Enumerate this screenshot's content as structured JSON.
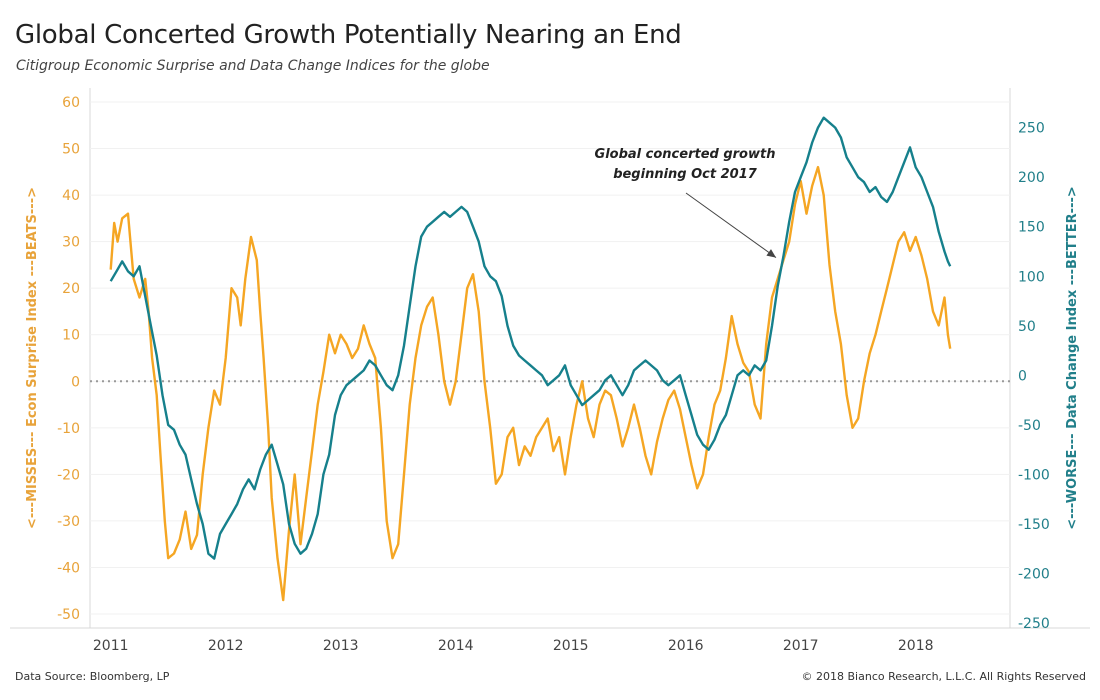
{
  "header": {
    "title": "Global Concerted Growth Potentially Nearing an End",
    "subtitle": "Citigroup Economic Surprise and Data Change Indices for the globe"
  },
  "footer": {
    "source": "Data Source: Bloomberg, LP",
    "copyright": "© 2018 Bianco Research, L.L.C. All Rights Reserved"
  },
  "chart_data": {
    "type": "line",
    "x_ticks": [
      "2011",
      "2012",
      "2013",
      "2014",
      "2015",
      "2016",
      "2017",
      "2018"
    ],
    "y_left": {
      "label": "<---MISSES--- Econ Surprise Index ---BEATS--->",
      "ticks": [
        60,
        50,
        40,
        30,
        20,
        10,
        0,
        -10,
        -20,
        -30,
        -40,
        -50
      ],
      "range": [
        -53,
        63
      ],
      "color": "#f5a623"
    },
    "y_right": {
      "label": "<---WORSE--- Data Change Index ---BETTER--->",
      "ticks": [
        250,
        200,
        150,
        100,
        50,
        0,
        -50,
        -100,
        -150,
        -200,
        -250
      ],
      "range": [
        -255,
        290
      ],
      "color": "#16808c"
    },
    "zero_line": "dotted",
    "annotation": {
      "text_line1": "Global concerted growth",
      "text_line2": "beginning Oct 2017",
      "target_date": 2016.82,
      "target_value": 27
    },
    "series": [
      {
        "name": "Econ Surprise Index",
        "axis": "left",
        "color": "#f5a623",
        "points": [
          [
            2011.0,
            24
          ],
          [
            2011.03,
            34
          ],
          [
            2011.06,
            30
          ],
          [
            2011.1,
            35
          ],
          [
            2011.15,
            36
          ],
          [
            2011.2,
            22
          ],
          [
            2011.25,
            18
          ],
          [
            2011.3,
            22
          ],
          [
            2011.33,
            15
          ],
          [
            2011.36,
            5
          ],
          [
            2011.4,
            -3
          ],
          [
            2011.43,
            -15
          ],
          [
            2011.47,
            -30
          ],
          [
            2011.5,
            -38
          ],
          [
            2011.55,
            -37
          ],
          [
            2011.6,
            -34
          ],
          [
            2011.65,
            -28
          ],
          [
            2011.7,
            -36
          ],
          [
            2011.75,
            -33
          ],
          [
            2011.8,
            -20
          ],
          [
            2011.85,
            -10
          ],
          [
            2011.9,
            -2
          ],
          [
            2011.95,
            -5
          ],
          [
            2012.0,
            5
          ],
          [
            2012.05,
            20
          ],
          [
            2012.1,
            18
          ],
          [
            2012.13,
            12
          ],
          [
            2012.17,
            22
          ],
          [
            2012.22,
            31
          ],
          [
            2012.27,
            26
          ],
          [
            2012.3,
            15
          ],
          [
            2012.33,
            5
          ],
          [
            2012.37,
            -10
          ],
          [
            2012.4,
            -25
          ],
          [
            2012.45,
            -38
          ],
          [
            2012.5,
            -47
          ],
          [
            2012.55,
            -32
          ],
          [
            2012.6,
            -20
          ],
          [
            2012.65,
            -35
          ],
          [
            2012.7,
            -25
          ],
          [
            2012.75,
            -15
          ],
          [
            2012.8,
            -5
          ],
          [
            2012.85,
            2
          ],
          [
            2012.9,
            10
          ],
          [
            2012.95,
            6
          ],
          [
            2013.0,
            10
          ],
          [
            2013.05,
            8
          ],
          [
            2013.1,
            5
          ],
          [
            2013.15,
            7
          ],
          [
            2013.2,
            12
          ],
          [
            2013.25,
            8
          ],
          [
            2013.3,
            5
          ],
          [
            2013.35,
            -10
          ],
          [
            2013.4,
            -30
          ],
          [
            2013.45,
            -38
          ],
          [
            2013.5,
            -35
          ],
          [
            2013.55,
            -20
          ],
          [
            2013.6,
            -5
          ],
          [
            2013.65,
            5
          ],
          [
            2013.7,
            12
          ],
          [
            2013.75,
            16
          ],
          [
            2013.8,
            18
          ],
          [
            2013.85,
            10
          ],
          [
            2013.9,
            0
          ],
          [
            2013.95,
            -5
          ],
          [
            2014.0,
            0
          ],
          [
            2014.05,
            10
          ],
          [
            2014.1,
            20
          ],
          [
            2014.15,
            23
          ],
          [
            2014.2,
            15
          ],
          [
            2014.25,
            0
          ],
          [
            2014.3,
            -10
          ],
          [
            2014.35,
            -22
          ],
          [
            2014.4,
            -20
          ],
          [
            2014.45,
            -12
          ],
          [
            2014.5,
            -10
          ],
          [
            2014.55,
            -18
          ],
          [
            2014.6,
            -14
          ],
          [
            2014.65,
            -16
          ],
          [
            2014.7,
            -12
          ],
          [
            2014.75,
            -10
          ],
          [
            2014.8,
            -8
          ],
          [
            2014.85,
            -15
          ],
          [
            2014.9,
            -12
          ],
          [
            2014.95,
            -20
          ],
          [
            2015.0,
            -12
          ],
          [
            2015.05,
            -5
          ],
          [
            2015.1,
            0
          ],
          [
            2015.15,
            -8
          ],
          [
            2015.2,
            -12
          ],
          [
            2015.25,
            -5
          ],
          [
            2015.3,
            -2
          ],
          [
            2015.35,
            -3
          ],
          [
            2015.4,
            -8
          ],
          [
            2015.45,
            -14
          ],
          [
            2015.5,
            -10
          ],
          [
            2015.55,
            -5
          ],
          [
            2015.6,
            -10
          ],
          [
            2015.65,
            -16
          ],
          [
            2015.7,
            -20
          ],
          [
            2015.75,
            -13
          ],
          [
            2015.8,
            -8
          ],
          [
            2015.85,
            -4
          ],
          [
            2015.9,
            -2
          ],
          [
            2015.95,
            -6
          ],
          [
            2016.0,
            -12
          ],
          [
            2016.05,
            -18
          ],
          [
            2016.1,
            -23
          ],
          [
            2016.15,
            -20
          ],
          [
            2016.2,
            -12
          ],
          [
            2016.25,
            -5
          ],
          [
            2016.3,
            -2
          ],
          [
            2016.35,
            5
          ],
          [
            2016.4,
            14
          ],
          [
            2016.45,
            8
          ],
          [
            2016.5,
            4
          ],
          [
            2016.55,
            2
          ],
          [
            2016.6,
            -5
          ],
          [
            2016.65,
            -8
          ],
          [
            2016.7,
            8
          ],
          [
            2016.75,
            18
          ],
          [
            2016.8,
            22
          ],
          [
            2016.85,
            26
          ],
          [
            2016.9,
            30
          ],
          [
            2016.95,
            38
          ],
          [
            2017.0,
            43
          ],
          [
            2017.05,
            36
          ],
          [
            2017.1,
            42
          ],
          [
            2017.15,
            46
          ],
          [
            2017.2,
            40
          ],
          [
            2017.25,
            25
          ],
          [
            2017.3,
            15
          ],
          [
            2017.35,
            8
          ],
          [
            2017.4,
            -3
          ],
          [
            2017.45,
            -10
          ],
          [
            2017.5,
            -8
          ],
          [
            2017.55,
            0
          ],
          [
            2017.6,
            6
          ],
          [
            2017.65,
            10
          ],
          [
            2017.7,
            15
          ],
          [
            2017.75,
            20
          ],
          [
            2017.8,
            25
          ],
          [
            2017.85,
            30
          ],
          [
            2017.9,
            32
          ],
          [
            2017.95,
            28
          ],
          [
            2018.0,
            31
          ],
          [
            2018.05,
            27
          ],
          [
            2018.1,
            22
          ],
          [
            2018.15,
            15
          ],
          [
            2018.2,
            12
          ],
          [
            2018.25,
            18
          ],
          [
            2018.28,
            10
          ],
          [
            2018.3,
            7
          ]
        ]
      },
      {
        "name": "Data Change Index",
        "axis": "right",
        "color": "#16808c",
        "points": [
          [
            2011.0,
            95
          ],
          [
            2011.05,
            105
          ],
          [
            2011.1,
            115
          ],
          [
            2011.15,
            105
          ],
          [
            2011.2,
            100
          ],
          [
            2011.25,
            110
          ],
          [
            2011.3,
            80
          ],
          [
            2011.35,
            50
          ],
          [
            2011.4,
            20
          ],
          [
            2011.45,
            -20
          ],
          [
            2011.5,
            -50
          ],
          [
            2011.55,
            -55
          ],
          [
            2011.6,
            -70
          ],
          [
            2011.65,
            -80
          ],
          [
            2011.7,
            -105
          ],
          [
            2011.75,
            -130
          ],
          [
            2011.8,
            -150
          ],
          [
            2011.85,
            -180
          ],
          [
            2011.9,
            -185
          ],
          [
            2011.95,
            -160
          ],
          [
            2012.0,
            -150
          ],
          [
            2012.05,
            -140
          ],
          [
            2012.1,
            -130
          ],
          [
            2012.15,
            -115
          ],
          [
            2012.2,
            -105
          ],
          [
            2012.25,
            -115
          ],
          [
            2012.3,
            -95
          ],
          [
            2012.35,
            -80
          ],
          [
            2012.4,
            -70
          ],
          [
            2012.45,
            -90
          ],
          [
            2012.5,
            -110
          ],
          [
            2012.55,
            -150
          ],
          [
            2012.6,
            -170
          ],
          [
            2012.65,
            -180
          ],
          [
            2012.7,
            -175
          ],
          [
            2012.75,
            -160
          ],
          [
            2012.8,
            -140
          ],
          [
            2012.85,
            -100
          ],
          [
            2012.9,
            -80
          ],
          [
            2012.95,
            -40
          ],
          [
            2013.0,
            -20
          ],
          [
            2013.05,
            -10
          ],
          [
            2013.1,
            -5
          ],
          [
            2013.15,
            0
          ],
          [
            2013.2,
            5
          ],
          [
            2013.25,
            15
          ],
          [
            2013.3,
            10
          ],
          [
            2013.35,
            0
          ],
          [
            2013.4,
            -10
          ],
          [
            2013.45,
            -15
          ],
          [
            2013.5,
            0
          ],
          [
            2013.55,
            30
          ],
          [
            2013.6,
            70
          ],
          [
            2013.65,
            110
          ],
          [
            2013.7,
            140
          ],
          [
            2013.75,
            150
          ],
          [
            2013.8,
            155
          ],
          [
            2013.85,
            160
          ],
          [
            2013.9,
            165
          ],
          [
            2013.95,
            160
          ],
          [
            2014.0,
            165
          ],
          [
            2014.05,
            170
          ],
          [
            2014.1,
            165
          ],
          [
            2014.15,
            150
          ],
          [
            2014.2,
            135
          ],
          [
            2014.25,
            110
          ],
          [
            2014.3,
            100
          ],
          [
            2014.35,
            95
          ],
          [
            2014.4,
            80
          ],
          [
            2014.45,
            50
          ],
          [
            2014.5,
            30
          ],
          [
            2014.55,
            20
          ],
          [
            2014.6,
            15
          ],
          [
            2014.65,
            10
          ],
          [
            2014.7,
            5
          ],
          [
            2014.75,
            0
          ],
          [
            2014.8,
            -10
          ],
          [
            2014.85,
            -5
          ],
          [
            2014.9,
            0
          ],
          [
            2014.95,
            10
          ],
          [
            2015.0,
            -10
          ],
          [
            2015.05,
            -20
          ],
          [
            2015.1,
            -30
          ],
          [
            2015.15,
            -25
          ],
          [
            2015.2,
            -20
          ],
          [
            2015.25,
            -15
          ],
          [
            2015.3,
            -5
          ],
          [
            2015.35,
            0
          ],
          [
            2015.4,
            -10
          ],
          [
            2015.45,
            -20
          ],
          [
            2015.5,
            -10
          ],
          [
            2015.55,
            5
          ],
          [
            2015.6,
            10
          ],
          [
            2015.65,
            15
          ],
          [
            2015.7,
            10
          ],
          [
            2015.75,
            5
          ],
          [
            2015.8,
            -5
          ],
          [
            2015.85,
            -10
          ],
          [
            2015.9,
            -5
          ],
          [
            2015.95,
            0
          ],
          [
            2016.0,
            -20
          ],
          [
            2016.05,
            -40
          ],
          [
            2016.1,
            -60
          ],
          [
            2016.15,
            -70
          ],
          [
            2016.2,
            -75
          ],
          [
            2016.25,
            -65
          ],
          [
            2016.3,
            -50
          ],
          [
            2016.35,
            -40
          ],
          [
            2016.4,
            -20
          ],
          [
            2016.45,
            0
          ],
          [
            2016.5,
            5
          ],
          [
            2016.55,
            0
          ],
          [
            2016.6,
            10
          ],
          [
            2016.65,
            5
          ],
          [
            2016.7,
            15
          ],
          [
            2016.75,
            50
          ],
          [
            2016.8,
            90
          ],
          [
            2016.85,
            120
          ],
          [
            2016.9,
            155
          ],
          [
            2016.95,
            185
          ],
          [
            2017.0,
            200
          ],
          [
            2017.05,
            215
          ],
          [
            2017.1,
            235
          ],
          [
            2017.15,
            250
          ],
          [
            2017.2,
            260
          ],
          [
            2017.25,
            255
          ],
          [
            2017.3,
            250
          ],
          [
            2017.35,
            240
          ],
          [
            2017.4,
            220
          ],
          [
            2017.45,
            210
          ],
          [
            2017.5,
            200
          ],
          [
            2017.55,
            195
          ],
          [
            2017.6,
            185
          ],
          [
            2017.65,
            190
          ],
          [
            2017.7,
            180
          ],
          [
            2017.75,
            175
          ],
          [
            2017.8,
            185
          ],
          [
            2017.85,
            200
          ],
          [
            2017.9,
            215
          ],
          [
            2017.95,
            230
          ],
          [
            2018.0,
            210
          ],
          [
            2018.05,
            200
          ],
          [
            2018.1,
            185
          ],
          [
            2018.15,
            170
          ],
          [
            2018.2,
            145
          ],
          [
            2018.25,
            125
          ],
          [
            2018.28,
            115
          ],
          [
            2018.3,
            110
          ]
        ]
      }
    ]
  }
}
